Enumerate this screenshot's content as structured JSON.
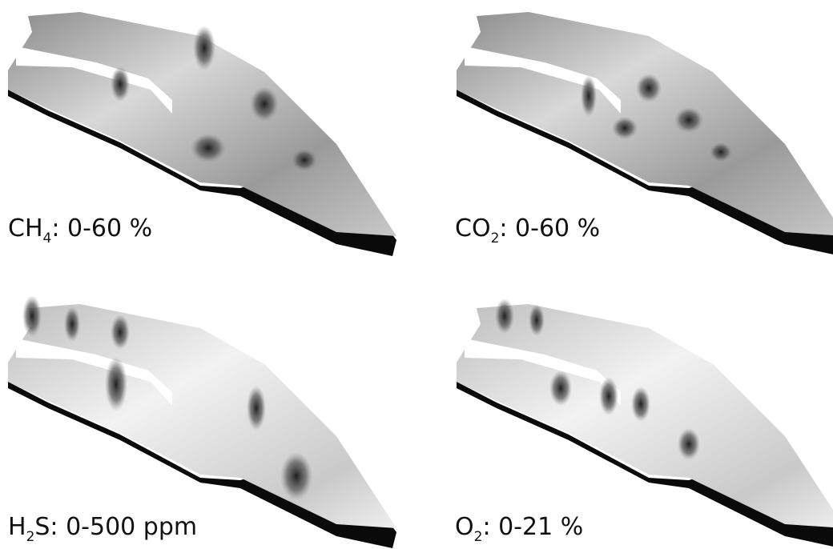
{
  "panels": [
    {
      "formula": "CH",
      "subscript": "4",
      "rest": ": 0-60 %"
    },
    {
      "formula": "CO",
      "subscript": "2",
      "rest": ": 0-60 %"
    },
    {
      "formula": "H",
      "subscript": "2",
      "rest": "S: 0-500 ppm"
    },
    {
      "formula": "O",
      "subscript": "2",
      "rest": ": 0-21 %"
    }
  ]
}
